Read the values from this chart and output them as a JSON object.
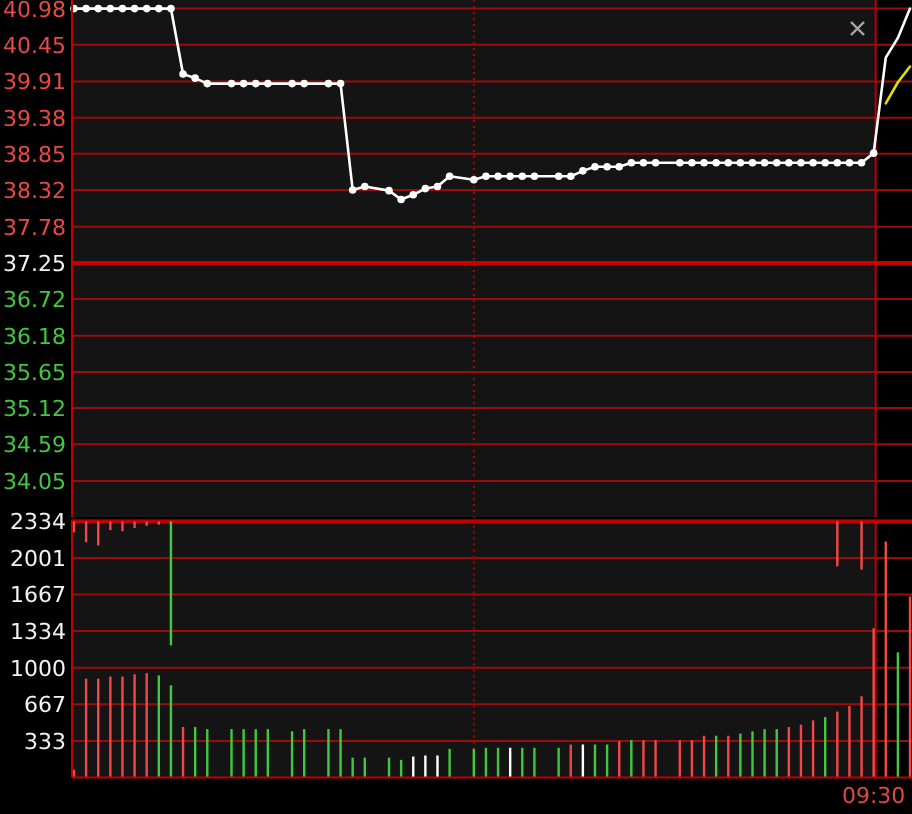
{
  "chart_data": [
    {
      "type": "line",
      "categories": [
        null,
        null,
        null,
        null,
        null,
        null,
        null,
        null,
        null,
        null,
        null,
        null,
        null,
        null,
        null,
        null,
        null,
        null,
        null,
        null,
        null,
        null,
        null,
        null,
        null,
        null,
        null,
        null,
        null,
        null,
        null,
        null,
        null,
        null,
        null,
        null,
        null,
        null,
        null,
        null,
        null,
        null,
        null,
        null,
        null,
        null,
        null,
        null,
        null,
        null,
        null,
        null,
        null,
        null,
        null,
        null,
        null,
        null,
        null,
        null,
        null,
        null,
        null,
        null,
        null,
        null,
        null,
        null,
        null,
        null
      ],
      "series": [
        {
          "color": "#ffffff",
          "marker": "circle",
          "values": [
            40.98,
            40.98,
            40.98,
            40.98,
            40.98,
            40.98,
            40.98,
            40.98,
            40.98,
            40.02,
            39.96,
            39.88,
            null,
            39.88,
            39.88,
            39.88,
            39.88,
            null,
            39.88,
            39.88,
            null,
            39.88,
            39.88,
            38.32,
            38.37,
            null,
            38.31,
            38.18,
            38.25,
            38.34,
            38.37,
            38.52,
            null,
            38.47,
            38.52,
            38.52,
            38.52,
            38.52,
            38.52,
            null,
            38.52,
            38.52,
            38.6,
            38.66,
            38.66,
            38.66,
            38.72,
            38.72,
            38.72,
            null,
            38.72,
            38.72,
            38.72,
            38.72,
            38.72,
            38.72,
            38.72,
            38.72,
            38.72,
            38.72,
            38.72,
            38.72,
            38.72,
            38.72,
            38.72,
            38.72,
            38.86,
            null,
            null,
            null
          ]
        },
        {
          "color": "#ffffff",
          "marker": "none",
          "values": [
            null,
            null,
            null,
            null,
            null,
            null,
            null,
            null,
            null,
            null,
            null,
            null,
            null,
            null,
            null,
            null,
            null,
            null,
            null,
            null,
            null,
            null,
            null,
            null,
            null,
            null,
            null,
            null,
            null,
            null,
            null,
            null,
            null,
            null,
            null,
            null,
            null,
            null,
            null,
            null,
            null,
            null,
            null,
            null,
            null,
            null,
            null,
            null,
            null,
            null,
            null,
            null,
            null,
            null,
            null,
            null,
            null,
            null,
            null,
            null,
            null,
            null,
            null,
            null,
            null,
            null,
            38.86,
            40.26,
            40.55,
            40.98
          ]
        },
        {
          "color": "#e0e000",
          "marker": "none",
          "values": [
            null,
            null,
            null,
            null,
            null,
            null,
            null,
            null,
            null,
            null,
            null,
            null,
            null,
            null,
            null,
            null,
            null,
            null,
            null,
            null,
            null,
            null,
            null,
            null,
            null,
            null,
            null,
            null,
            null,
            null,
            null,
            null,
            null,
            null,
            null,
            null,
            null,
            null,
            null,
            null,
            null,
            null,
            null,
            null,
            null,
            null,
            null,
            null,
            null,
            null,
            null,
            null,
            null,
            null,
            null,
            null,
            null,
            null,
            null,
            null,
            null,
            null,
            null,
            null,
            null,
            null,
            null,
            39.59,
            39.9,
            40.13
          ]
        }
      ],
      "ylim": [
        33.52,
        40.98
      ],
      "yticks": [
        34.05,
        34.59,
        35.12,
        35.65,
        36.18,
        36.72,
        37.25,
        37.78,
        38.32,
        38.85,
        39.38,
        39.91,
        40.45,
        40.98
      ],
      "grid": "y",
      "tick_labels": "y",
      "ref_lines": [
        {
          "axis": "y",
          "value": 37.25,
          "color": "#c80000"
        }
      ]
    },
    {
      "type": "bar",
      "categories": [
        null,
        null,
        null,
        null,
        null,
        null,
        null,
        null,
        null,
        null,
        null,
        null,
        null,
        null,
        null,
        null,
        null,
        null,
        null,
        null,
        null,
        null,
        null,
        null,
        null,
        null,
        null,
        null,
        null,
        null,
        null,
        null,
        null,
        null,
        null,
        null,
        null,
        null,
        null,
        null,
        null,
        null,
        null,
        null,
        null,
        null,
        null,
        null,
        null,
        null,
        null,
        null,
        null,
        null,
        null,
        null,
        null,
        null,
        null,
        null,
        null,
        null,
        null,
        null,
        null,
        null,
        "09:30",
        null,
        null,
        null
      ],
      "series": [
        {
          "values": [
            70,
            900,
            900,
            920,
            920,
            940,
            950,
            930,
            840,
            460,
            460,
            440,
            null,
            440,
            440,
            440,
            440,
            null,
            420,
            440,
            null,
            440,
            440,
            180,
            180,
            null,
            180,
            160,
            190,
            200,
            200,
            260,
            null,
            260,
            270,
            270,
            270,
            270,
            270,
            null,
            270,
            300,
            300,
            300,
            300,
            330,
            340,
            340,
            340,
            null,
            340,
            340,
            380,
            380,
            380,
            400,
            420,
            440,
            440,
            460,
            480,
            520,
            550,
            600,
            650,
            740,
            1360,
            2150,
            1140,
            1650
          ],
          "colors": [
            "#f04848",
            "#f04848",
            "#f04848",
            "#f04848",
            "#f04848",
            "#f04848",
            "#f04848",
            "#40c840",
            "#40c840",
            "#f04848",
            "#40c840",
            "#40c840",
            null,
            "#40c840",
            "#40c840",
            "#40c840",
            "#40c840",
            null,
            "#40c840",
            "#40c840",
            null,
            "#40c840",
            "#40c840",
            "#40c840",
            "#40c840",
            null,
            "#40c840",
            "#40c840",
            "#ffffff",
            "#ffffff",
            "#ffffff",
            "#40c840",
            null,
            "#40c840",
            "#40c840",
            "#40c840",
            "#ffffff",
            "#40c840",
            "#40c840",
            null,
            "#40c840",
            "#f04848",
            "#ffffff",
            "#40c840",
            "#40c840",
            "#f04848",
            "#40c840",
            "#f04848",
            "#f04848",
            null,
            "#f04848",
            "#f04848",
            "#f04848",
            "#40c840",
            "#f04848",
            "#40c840",
            "#40c840",
            "#40c840",
            "#40c840",
            "#f04848",
            "#f04848",
            "#f04848",
            "#40c840",
            "#f04848",
            "#f04848",
            "#f04848",
            "#f04848",
            "#f04848",
            "#40c840",
            "#f04848"
          ]
        },
        {
          "base": [
            2234,
            2144,
            2114,
            2254,
            2244,
            2274,
            2294,
            2304,
            1204,
            null,
            null,
            null,
            null,
            null,
            null,
            null,
            null,
            null,
            null,
            null,
            null,
            null,
            null,
            null,
            null,
            null,
            null,
            null,
            null,
            null,
            null,
            null,
            null,
            null,
            null,
            null,
            null,
            null,
            null,
            null,
            null,
            null,
            null,
            null,
            null,
            null,
            null,
            null,
            null,
            null,
            null,
            null,
            null,
            null,
            null,
            null,
            null,
            null,
            null,
            null,
            null,
            null,
            null,
            1924,
            null,
            1894,
            null,
            null,
            null,
            null
          ],
          "values": [
            100,
            190,
            220,
            80,
            90,
            60,
            40,
            30,
            1130,
            null,
            null,
            null,
            null,
            null,
            null,
            null,
            null,
            null,
            null,
            null,
            null,
            null,
            null,
            null,
            null,
            null,
            null,
            null,
            null,
            null,
            null,
            null,
            null,
            null,
            null,
            null,
            null,
            null,
            null,
            null,
            null,
            null,
            null,
            null,
            null,
            null,
            null,
            null,
            null,
            null,
            null,
            null,
            null,
            null,
            null,
            null,
            null,
            null,
            null,
            null,
            null,
            null,
            null,
            410,
            null,
            440,
            null,
            null,
            null,
            null
          ],
          "colors": [
            "#f04848",
            "#f04848",
            "#f04848",
            "#f04848",
            "#f04848",
            "#f04848",
            "#f04848",
            "#f04848",
            "#40c840",
            null,
            null,
            null,
            null,
            null,
            null,
            null,
            null,
            null,
            null,
            null,
            null,
            null,
            null,
            null,
            null,
            null,
            null,
            null,
            null,
            null,
            null,
            null,
            null,
            null,
            null,
            null,
            null,
            null,
            null,
            null,
            null,
            null,
            null,
            null,
            null,
            null,
            null,
            null,
            null,
            null,
            null,
            null,
            null,
            null,
            null,
            null,
            null,
            null,
            null,
            null,
            null,
            null,
            null,
            "#f04848",
            null,
            "#f04848",
            null,
            null,
            null,
            null
          ]
        }
      ],
      "ylim": [
        0,
        2334
      ],
      "yticks": [
        333,
        667,
        1000,
        1334,
        1667,
        2001,
        2334
      ],
      "grid": "y"
    }
  ]
}
